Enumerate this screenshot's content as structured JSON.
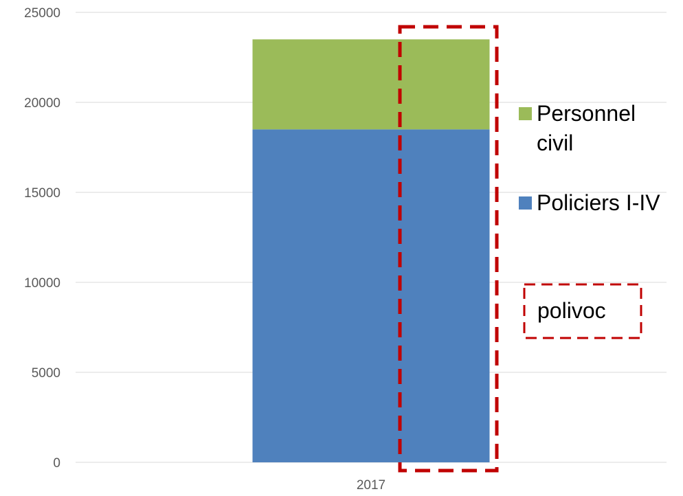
{
  "chart_data": {
    "type": "bar",
    "stacked": true,
    "categories": [
      "2017"
    ],
    "series": [
      {
        "name": "Policiers I-IV",
        "values": [
          18500
        ],
        "color": "#4F81BD"
      },
      {
        "name": "Personnel civil",
        "values": [
          5000
        ],
        "color": "#9BBB59"
      }
    ],
    "ylim": [
      0,
      25000
    ],
    "yticks": [
      0,
      5000,
      10000,
      15000,
      20000,
      25000
    ],
    "grid": true,
    "legend_position": "right",
    "legend": [
      {
        "label_lines": [
          "Personnel",
          "civil"
        ],
        "color": "#9BBB59"
      },
      {
        "label_lines": [
          "Policiers I-IV"
        ],
        "color": "#4F81BD"
      }
    ],
    "annotations": [
      {
        "text": "polivoc",
        "style": "dashed-box",
        "color": "#C00000"
      }
    ],
    "highlight": {
      "style": "dashed-box",
      "color": "#C00000"
    }
  },
  "colors": {
    "grid": "#D9D9D9",
    "axis_text": "#595959",
    "legend_text": "#000000",
    "highlight": "#C00000"
  }
}
